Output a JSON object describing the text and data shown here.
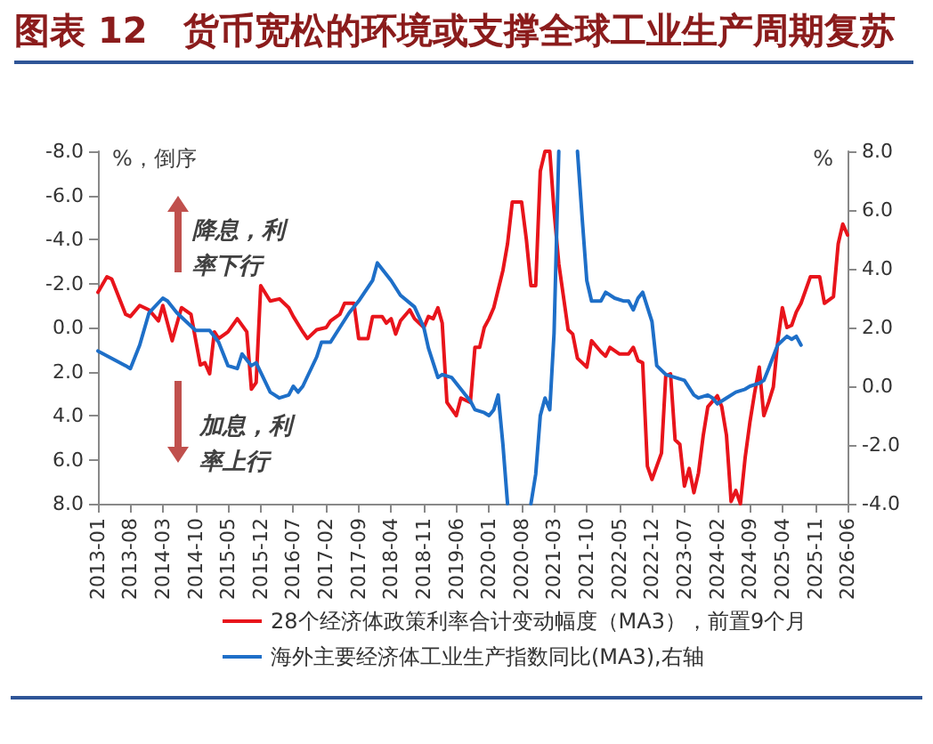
{
  "chart_data": {
    "type": "line",
    "title": "图表 12　货币宽松的环境或支撑全球工业生产周期复苏",
    "ylabel": "%，倒序",
    "y2label": "%",
    "annotations": [
      "降息，利率下行",
      "加息，利率上行"
    ],
    "xlim": [
      "2013-01",
      "2026-06"
    ],
    "xticks": [
      "2013-01",
      "2013-08",
      "2014-03",
      "2014-10",
      "2015-05",
      "2015-12",
      "2016-07",
      "2017-02",
      "2017-09",
      "2018-04",
      "2018-11",
      "2019-06",
      "2020-01",
      "2020-08",
      "2021-03",
      "2021-10",
      "2022-05",
      "2022-12",
      "2023-07",
      "2024-02",
      "2024-09",
      "2025-04",
      "2025-11",
      "2026-06"
    ],
    "ylim": [
      8,
      -8
    ],
    "yticks": [
      {
        "value": -8,
        "label": "-8.0"
      },
      {
        "value": -6,
        "label": "-6.0"
      },
      {
        "value": -4,
        "label": "-4.0"
      },
      {
        "value": -2,
        "label": "-2.0"
      },
      {
        "value": 0,
        "label": "0.0"
      },
      {
        "value": 2,
        "label": "2.0"
      },
      {
        "value": 4,
        "label": "4.0"
      },
      {
        "value": 6,
        "label": "6.0"
      },
      {
        "value": 8,
        "label": "8.0"
      }
    ],
    "y2lim": [
      -4,
      8
    ],
    "y2ticks": [
      {
        "value": -4,
        "label": "-4.0"
      },
      {
        "value": -2,
        "label": "-2.0"
      },
      {
        "value": 0,
        "label": "0.0"
      },
      {
        "value": 2,
        "label": "2.0"
      },
      {
        "value": 4,
        "label": "4.0"
      },
      {
        "value": 6,
        "label": "6.0"
      },
      {
        "value": 8,
        "label": "8.0"
      }
    ],
    "grid": false,
    "legend": "bottom",
    "marker": "none",
    "line_style": "solid",
    "series": [
      {
        "name": "28个经济体政策利率合计变动幅度（MA3），前置9个月",
        "color": "#e8141b",
        "x": [
          "2013-01",
          "2013-03",
          "2013-04",
          "2013-07",
          "2013-08",
          "2013-10",
          "2013-12",
          "2014-02",
          "2014-03",
          "2014-05",
          "2014-07",
          "2014-09",
          "2014-11",
          "2014-12",
          "2015-01",
          "2015-02",
          "2015-03",
          "2015-05",
          "2015-07",
          "2015-09",
          "2015-10",
          "2015-11",
          "2015-12",
          "2016-02",
          "2016-04",
          "2016-06",
          "2016-07",
          "2016-09",
          "2016-10",
          "2016-12",
          "2017-02",
          "2017-03",
          "2017-05",
          "2017-06",
          "2017-08",
          "2017-09",
          "2017-11",
          "2017-12",
          "2018-02",
          "2018-03",
          "2018-04",
          "2018-05",
          "2018-06",
          "2018-08",
          "2018-09",
          "2018-11",
          "2018-12",
          "2019-01",
          "2019-02",
          "2019-03",
          "2019-04",
          "2019-06",
          "2019-07",
          "2019-09",
          "2019-10",
          "2019-11",
          "2019-12",
          "2020-01",
          "2020-02",
          "2020-04",
          "2020-05",
          "2020-06",
          "2020-08",
          "2020-09",
          "2020-10",
          "2020-11",
          "2020-12",
          "2021-01",
          "2021-02",
          "2021-03",
          "2021-04",
          "2021-06",
          "2021-07",
          "2021-08",
          "2021-10",
          "2021-11",
          "2022-01",
          "2022-02",
          "2022-03",
          "2022-05",
          "2022-07",
          "2022-08",
          "2022-09",
          "2022-10",
          "2022-11",
          "2022-12",
          "2023-02",
          "2023-03",
          "2023-04",
          "2023-05",
          "2023-06",
          "2023-07",
          "2023-08",
          "2023-09",
          "2023-10",
          "2023-11",
          "2023-12",
          "2024-02",
          "2024-03",
          "2024-04",
          "2024-05",
          "2024-06",
          "2024-07",
          "2024-08",
          "2024-09",
          "2024-10",
          "2024-11",
          "2024-12",
          "2025-01",
          "2025-02",
          "2025-03",
          "2025-04",
          "2025-05",
          "2025-06",
          "2025-07",
          "2025-08",
          "2025-10",
          "2025-12",
          "2026-01",
          "2026-03",
          "2026-04",
          "2026-05",
          "2026-06"
        ],
        "values": [
          -1.6,
          -2.3,
          -2.2,
          -0.6,
          -0.5,
          -1.0,
          -0.8,
          -0.3,
          -1.0,
          0.6,
          -0.9,
          -0.6,
          1.7,
          1.6,
          2.1,
          0.2,
          0.5,
          0.2,
          -0.4,
          0.2,
          2.8,
          2.5,
          -1.9,
          -1.2,
          -1.3,
          -0.9,
          -0.5,
          0.2,
          0.5,
          0.1,
          0.0,
          -0.3,
          -0.6,
          -1.1,
          -1.1,
          0.5,
          0.5,
          -0.5,
          -0.5,
          -0.2,
          -0.4,
          0.3,
          -0.3,
          -0.8,
          -0.4,
          0.0,
          -0.5,
          -0.4,
          -0.9,
          -0.2,
          3.4,
          4.0,
          3.2,
          3.4,
          0.9,
          0.9,
          0.0,
          -0.4,
          -0.9,
          -2.6,
          -3.8,
          -5.7,
          -5.7,
          -4.0,
          -1.9,
          -1.9,
          -7.1,
          -8,
          -8,
          -5.3,
          -2.9,
          0.1,
          0.3,
          1.4,
          1.8,
          0.6,
          1.1,
          1.3,
          0.9,
          1.2,
          1.2,
          0.9,
          1.5,
          1.6,
          6.3,
          6.9,
          5.7,
          2.2,
          2.1,
          5.1,
          5.3,
          7.2,
          6.4,
          7.5,
          6.6,
          4.9,
          3.6,
          3.1,
          3.6,
          4.9,
          7.9,
          7.4,
          8,
          5.9,
          4.3,
          3.0,
          1.8,
          4.0,
          3.4,
          2.7,
          0.7,
          -0.9,
          0.0,
          -0.1,
          -0.7,
          -1.1,
          -2.3,
          -2.3,
          -1.1,
          -1.4,
          -3.8,
          -4.7,
          -4.2
        ]
      },
      {
        "name": "海外主要经济体工业生产指数同比(MA3),右轴",
        "color": "#1e6fc8",
        "axis": "y2",
        "x": [
          "2013-01",
          "2013-07",
          "2013-08",
          "2013-10",
          "2013-12",
          "2014-03",
          "2014-04",
          "2014-06",
          "2014-10",
          "2015-01",
          "2015-03",
          "2015-05",
          "2015-07",
          "2015-08",
          "2015-10",
          "2015-11",
          "2016-02",
          "2016-04",
          "2016-06",
          "2016-07",
          "2016-08",
          "2016-09",
          "2016-12",
          "2017-01",
          "2017-03",
          "2017-05",
          "2017-07",
          "2017-09",
          "2017-12",
          "2018-01",
          "2018-04",
          "2018-06",
          "2018-09",
          "2018-11",
          "2018-12",
          "2019-02",
          "2019-03",
          "2019-05",
          "2019-07",
          "2019-08",
          "2019-09",
          "2019-10",
          "2019-12",
          "2020-01",
          "2020-02",
          "2020-03",
          "2020-04",
          "2020-05",
          "2020-06",
          "2020-10",
          "2020-11",
          "2020-12",
          "2021-01",
          "2021-02",
          "2021-03",
          "2021-04",
          "2021-05",
          "2021-08",
          "2021-09",
          "2021-10",
          "2021-11",
          "2022-01",
          "2022-02",
          "2022-04",
          "2022-06",
          "2022-07",
          "2022-08",
          "2022-09",
          "2022-10",
          "2022-12",
          "2023-01",
          "2023-03",
          "2023-05",
          "2023-07",
          "2023-09",
          "2023-10",
          "2023-12",
          "2024-01",
          "2024-02",
          "2024-04",
          "2024-06",
          "2024-08",
          "2024-09",
          "2024-11",
          "2024-12",
          "2025-01",
          "2025-03",
          "2025-05",
          "2025-06",
          "2025-07",
          "2025-08"
        ],
        "values": [
          1.2,
          0.7,
          0.6,
          1.4,
          2.5,
          3.0,
          2.9,
          2.5,
          1.9,
          1.9,
          1.5,
          0.7,
          0.6,
          1.1,
          0.7,
          0.8,
          -0.2,
          -0.4,
          -0.3,
          0.0,
          -0.2,
          0.0,
          1.0,
          1.5,
          1.5,
          2.0,
          2.5,
          2.9,
          3.6,
          4.2,
          3.6,
          3.1,
          2.7,
          2.0,
          1.3,
          0.3,
          0.4,
          0.3,
          -0.1,
          -0.3,
          -0.5,
          -0.8,
          -0.9,
          -1.0,
          -0.8,
          -0.3,
          -2.0,
          -4,
          null,
          -4,
          -3.0,
          -1.0,
          -0.4,
          -0.8,
          1.8,
          8,
          null,
          8,
          5.7,
          3.6,
          2.9,
          2.9,
          3.2,
          3.0,
          2.9,
          2.9,
          2.6,
          3.0,
          3.2,
          2.2,
          0.7,
          0.4,
          0.3,
          0.2,
          -0.3,
          -0.4,
          -0.3,
          -0.4,
          -0.6,
          -0.4,
          -0.2,
          -0.1,
          0.0,
          0.1,
          0.2,
          0.6,
          1.4,
          1.7,
          1.6,
          1.7,
          1.4
        ]
      }
    ]
  }
}
